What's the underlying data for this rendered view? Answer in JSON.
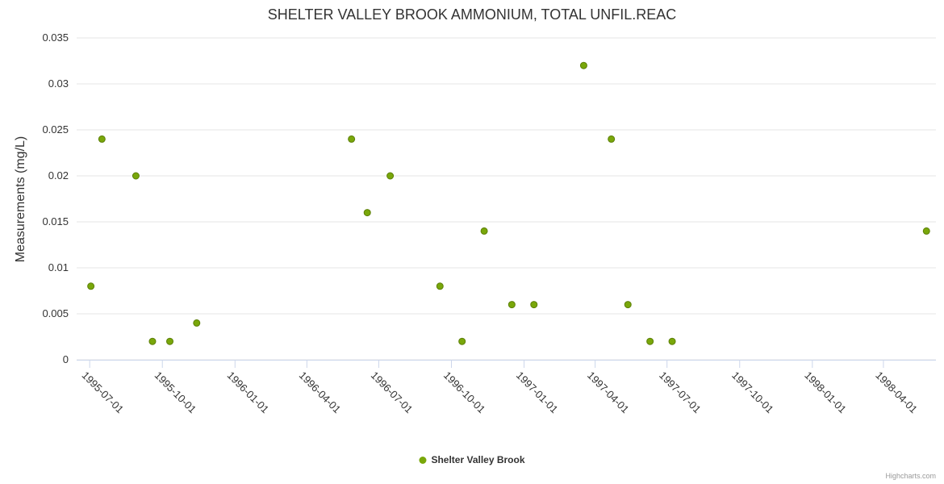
{
  "title": "SHELTER VALLEY BROOK AMMONIUM, TOTAL UNFIL.REAC",
  "y_axis_title": "Measurements (mg/L)",
  "legend": {
    "label": "Shelter Valley Brook"
  },
  "credits": "Highcharts.com",
  "colors": {
    "point_fill": "#79a70a",
    "point_stroke": "#5c7f08",
    "grid_line": "#e6e6e6",
    "axis_line": "#ccd6eb",
    "tick_mark": "#ccd6eb",
    "title_text": "#333333",
    "axis_label_text": "#333333",
    "credits_text": "#999999"
  },
  "chart_data": {
    "type": "scatter",
    "title": "SHELTER VALLEY BROOK AMMONIUM, TOTAL UNFIL.REAC",
    "xlabel": "",
    "ylabel": "Measurements (mg/L)",
    "ylim": [
      0,
      0.035
    ],
    "y_tick_labels": [
      "0",
      "0.005",
      "0.01",
      "0.015",
      "0.02",
      "0.025",
      "0.03",
      "0.035"
    ],
    "x_tick_labels": [
      "1995-07-01",
      "1995-10-01",
      "1996-01-01",
      "1996-04-01",
      "1996-07-01",
      "1996-10-01",
      "1997-01-01",
      "1997-04-01",
      "1997-07-01",
      "1997-10-01",
      "1998-01-01",
      "1998-04-01"
    ],
    "x_range": [
      "1995-06-15",
      "1998-06-07"
    ],
    "grid": true,
    "legend_position": "bottom",
    "series": [
      {
        "name": "Shelter Valley Brook",
        "points": [
          {
            "date": "1995-07-03",
            "value": 0.008
          },
          {
            "date": "1995-07-17",
            "value": 0.024
          },
          {
            "date": "1995-08-29",
            "value": 0.02
          },
          {
            "date": "1995-09-19",
            "value": 0.002
          },
          {
            "date": "1995-10-11",
            "value": 0.002
          },
          {
            "date": "1995-11-14",
            "value": 0.004
          },
          {
            "date": "1996-05-28",
            "value": 0.024
          },
          {
            "date": "1996-06-17",
            "value": 0.016
          },
          {
            "date": "1996-07-16",
            "value": 0.02
          },
          {
            "date": "1996-09-17",
            "value": 0.008
          },
          {
            "date": "1996-10-15",
            "value": 0.002
          },
          {
            "date": "1996-11-12",
            "value": 0.014
          },
          {
            "date": "1996-12-17",
            "value": 0.006
          },
          {
            "date": "1997-01-14",
            "value": 0.006
          },
          {
            "date": "1997-03-18",
            "value": 0.032
          },
          {
            "date": "1997-04-22",
            "value": 0.024
          },
          {
            "date": "1997-05-13",
            "value": 0.006
          },
          {
            "date": "1997-06-10",
            "value": 0.002
          },
          {
            "date": "1997-07-08",
            "value": 0.002
          },
          {
            "date": "1998-05-26",
            "value": 0.014
          }
        ]
      }
    ]
  }
}
